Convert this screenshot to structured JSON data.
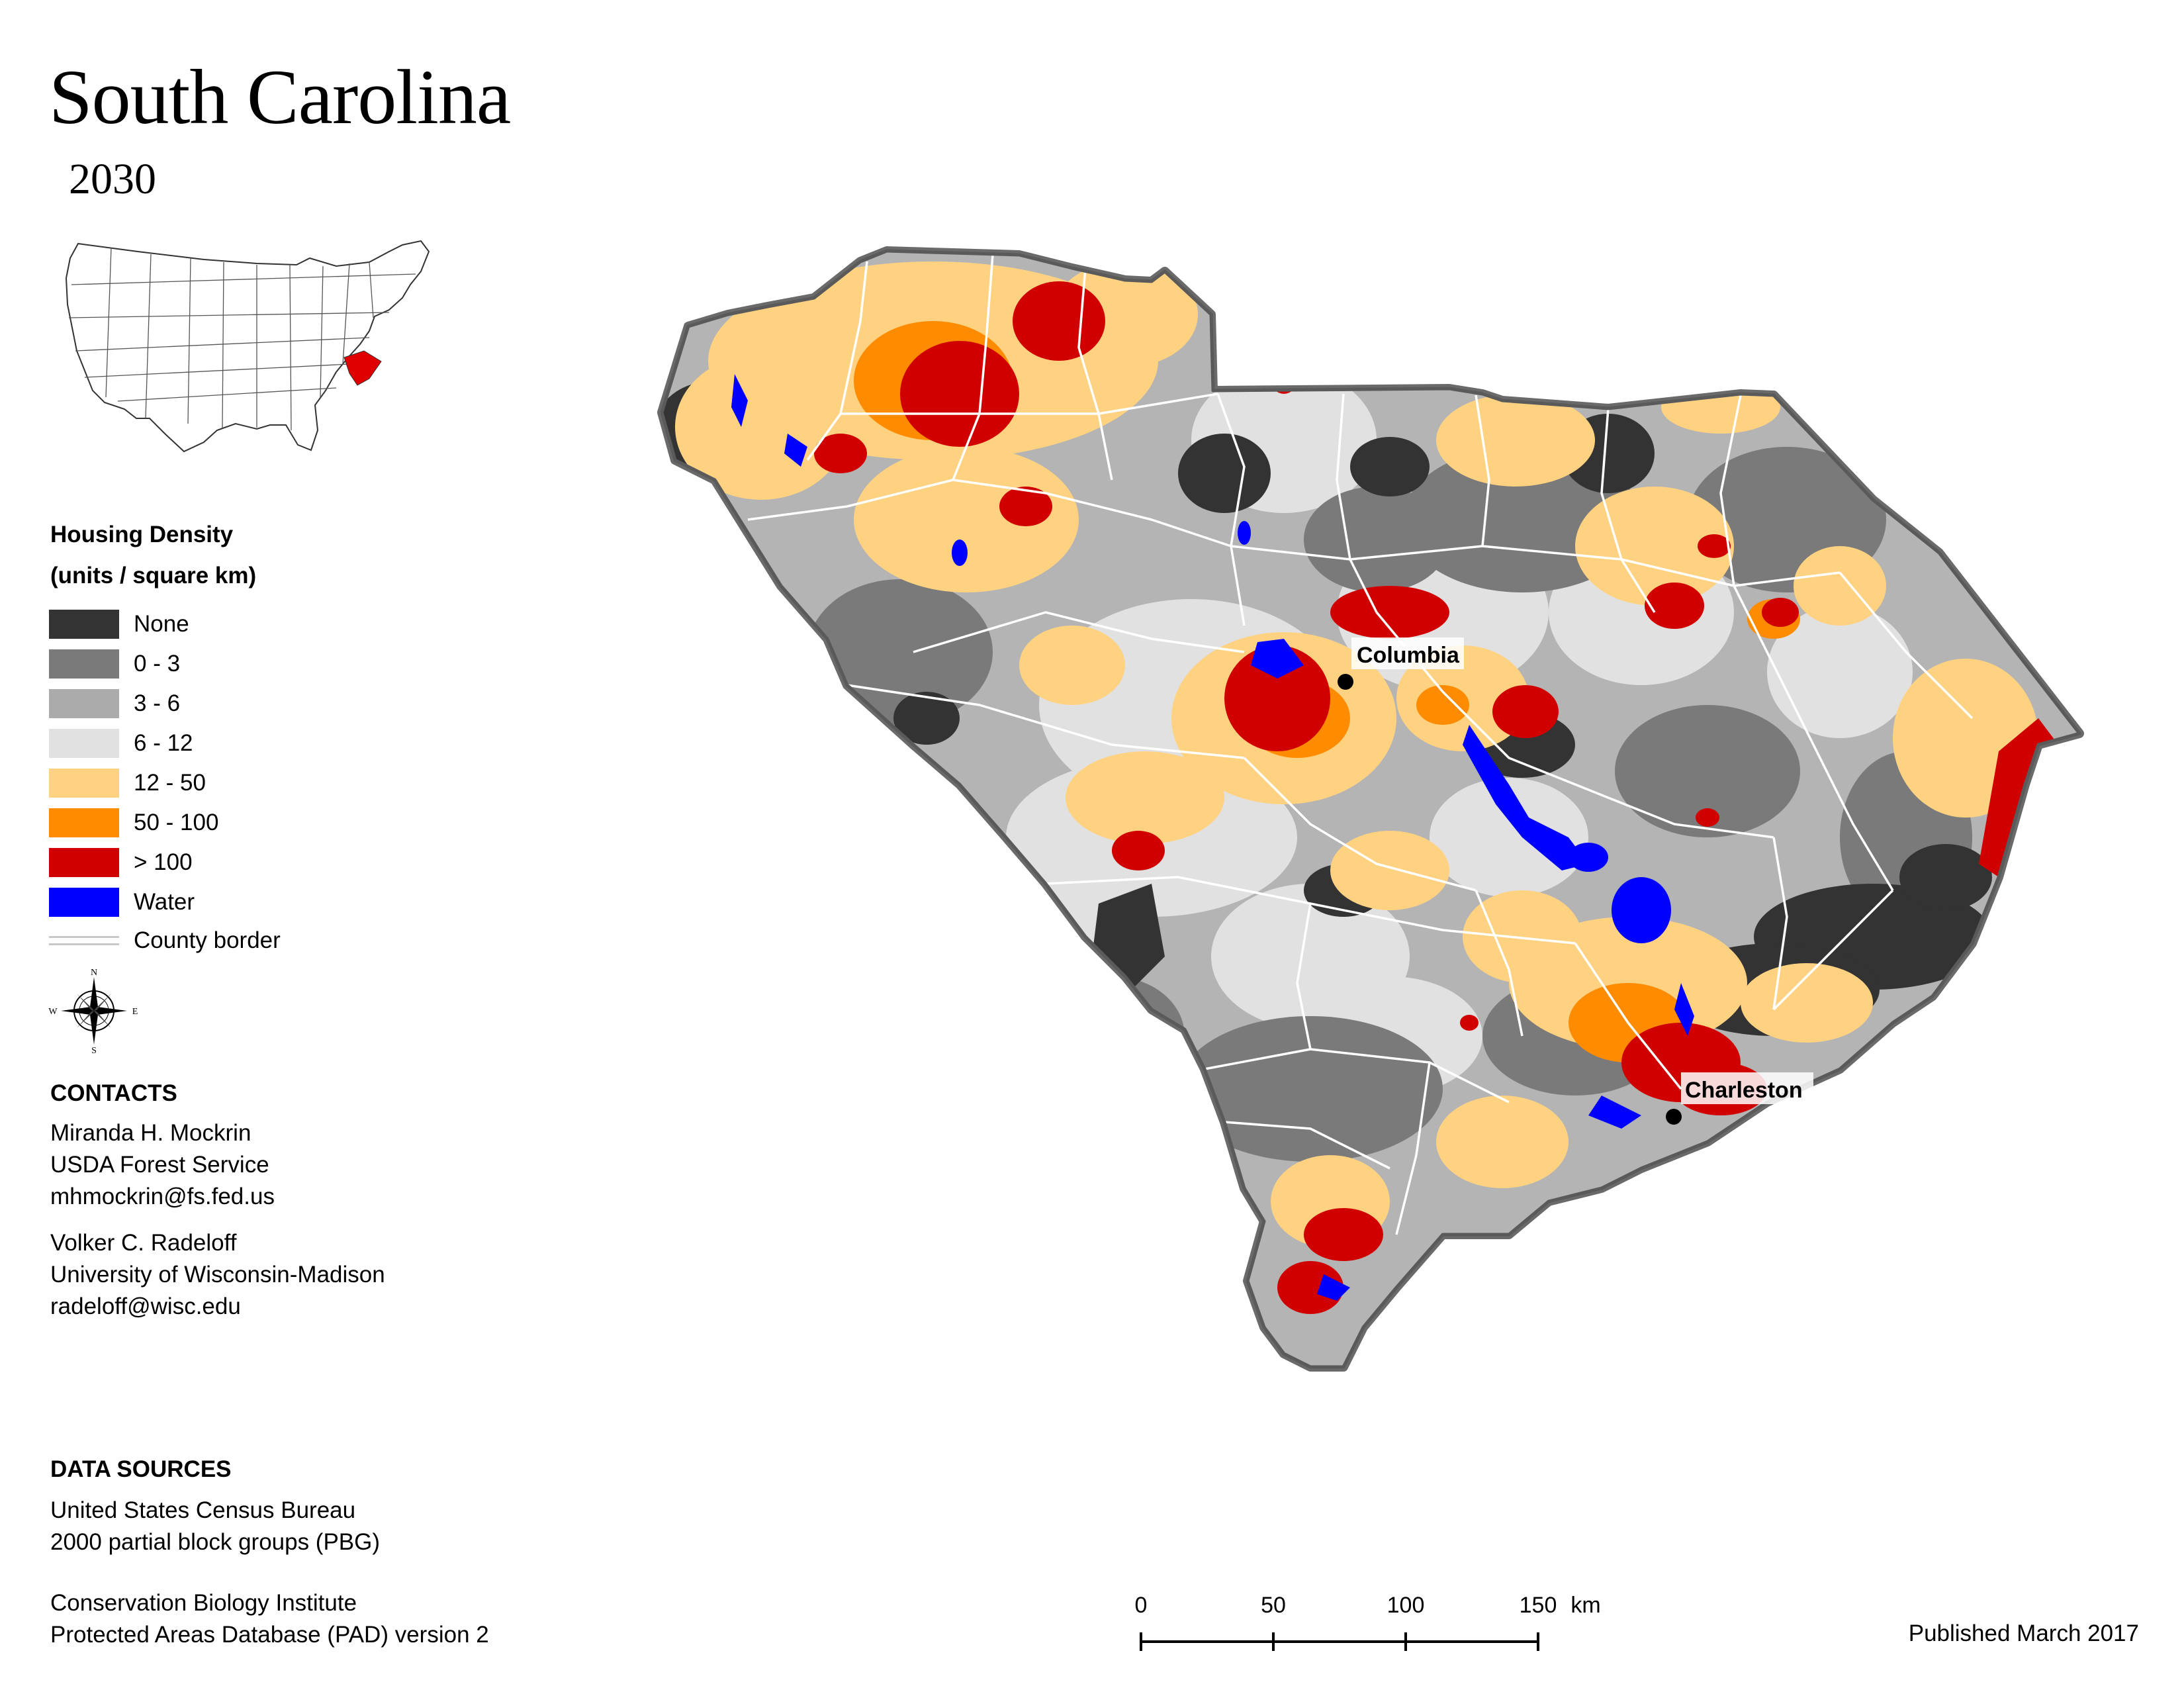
{
  "title": "South Carolina",
  "year": "2030",
  "legend": {
    "title_line1": "Housing Density",
    "title_line2": "(units / square km)",
    "items": [
      {
        "label": "None",
        "color": "#333333"
      },
      {
        "label": "0 - 3",
        "color": "#7a7a7a"
      },
      {
        "label": "3 - 6",
        "color": "#ababab"
      },
      {
        "label": "6 - 12",
        "color": "#e1e1e1"
      },
      {
        "label": "12 - 50",
        "color": "#ffd282"
      },
      {
        "label": "50 - 100",
        "color": "#ff8c00"
      },
      {
        "label": "> 100",
        "color": "#d00000"
      },
      {
        "label": "Water",
        "color": "#0000ff"
      }
    ],
    "border_label": "County border"
  },
  "compass": {
    "n": "N",
    "s": "S",
    "e": "E",
    "w": "W"
  },
  "contacts": {
    "heading": "CONTACTS",
    "person1": {
      "name": "Miranda H. Mockrin",
      "org": "USDA Forest Service",
      "email": "mhmockrin@fs.fed.us"
    },
    "person2": {
      "name": "Volker C. Radeloff",
      "org": "University of Wisconsin-Madison",
      "email": "radeloff@wisc.edu"
    }
  },
  "data_sources": {
    "heading": "DATA SOURCES",
    "source1_line1": "United States Census Bureau",
    "source1_line2": "2000 partial block groups (PBG)",
    "source2_line1": "Conservation Biology Institute",
    "source2_line2": "Protected Areas Database (PAD) version 2"
  },
  "cities": {
    "columbia": "Columbia",
    "charleston": "Charleston"
  },
  "scale": {
    "ticks": [
      "0",
      "50",
      "100",
      "150"
    ],
    "unit": "km"
  },
  "published": "Published March 2017"
}
